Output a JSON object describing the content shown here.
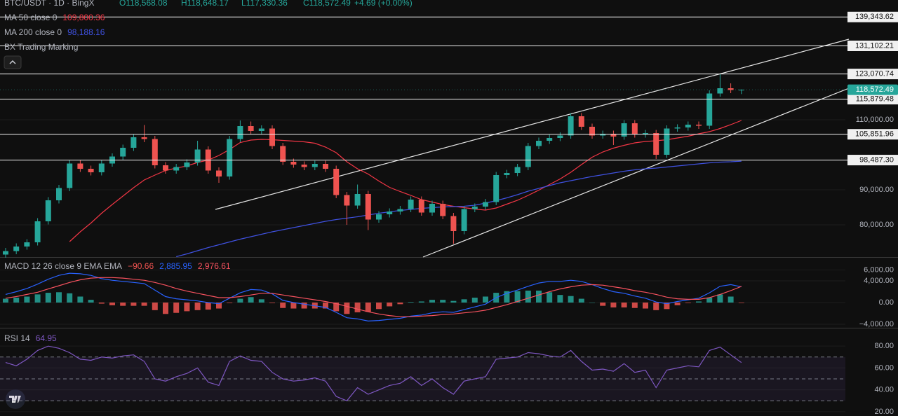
{
  "chart_data": [
    {
      "type": "candlestick",
      "title": "BTC/USDT · 1D · BingX",
      "ohlc_labels": [
        "O118,568.08",
        "H118,648.17",
        "L117,330.36",
        "C118,572.49"
      ],
      "change": "+4.69 (+0.00%)",
      "indicator_label": "BX Trading Marking",
      "up_color": "#26a69a",
      "down_color": "#ef5350",
      "ylim": [
        70800,
        144200
      ],
      "yticks": [
        {
          "value": 80000,
          "label": "80,000.00"
        },
        {
          "value": 90000,
          "label": "90,000.00"
        },
        {
          "value": 110000,
          "label": "110,000.00"
        }
      ],
      "levels": [
        {
          "value": 139343.62,
          "label": "139,343.62"
        },
        {
          "value": 131102.21,
          "label": "131,102.21"
        },
        {
          "value": 123070.74,
          "label": "123,070.74"
        },
        {
          "value": 115879.48,
          "label": "115,879.48"
        },
        {
          "value": 105851.96,
          "label": "105,851.96"
        },
        {
          "value": 98487.3,
          "label": "98,487.30"
        }
      ],
      "last_price": {
        "value": 118572.49,
        "label": "118,572.49",
        "color": "#26a69a"
      },
      "open": [
        71500,
        72500,
        73800,
        75000,
        81000,
        87000,
        90500,
        97500,
        96000,
        95000,
        97500,
        99500,
        102000,
        105000,
        104500,
        97000,
        95500,
        96500,
        97800,
        101500,
        95500,
        93800,
        104500,
        108200,
        106800,
        107500,
        102500,
        98000,
        97200,
        96500,
        97400,
        96000,
        88500,
        85500,
        88800,
        81500,
        83000,
        83800,
        84500,
        87200,
        83500,
        86000,
        82500,
        78200,
        84500,
        85200,
        86500,
        94200,
        94800,
        96500,
        102500,
        104000,
        104800,
        105500,
        111000,
        108000,
        105500,
        106000,
        105200,
        109000,
        105800,
        106200,
        100000,
        107500,
        107800,
        108600,
        108300,
        117500,
        119000,
        118568.08
      ],
      "high": [
        73400,
        74700,
        75900,
        81900,
        87900,
        91400,
        98400,
        98400,
        96900,
        98400,
        100400,
        102900,
        105900,
        108500,
        105400,
        97900,
        97400,
        98700,
        104000,
        102400,
        96400,
        105400,
        109800,
        109500,
        108400,
        108400,
        103400,
        98900,
        98100,
        98300,
        98300,
        96900,
        89400,
        91500,
        89700,
        83900,
        84700,
        85400,
        88100,
        88100,
        86900,
        86900,
        83400,
        85400,
        86100,
        87400,
        95100,
        95700,
        97400,
        103400,
        104900,
        105700,
        106400,
        111900,
        111900,
        108900,
        106900,
        106900,
        109900,
        109900,
        107100,
        107100,
        108400,
        108700,
        109500,
        109500,
        118400,
        123000,
        120400,
        118648.17
      ],
      "low": [
        70600,
        71600,
        72900,
        74100,
        80100,
        86100,
        89600,
        95100,
        94100,
        94100,
        96600,
        98600,
        101100,
        103600,
        96100,
        94600,
        94600,
        95600,
        96900,
        94600,
        92000,
        92900,
        103600,
        105900,
        105900,
        101600,
        97100,
        96300,
        95600,
        95600,
        95100,
        87600,
        80000,
        84600,
        78500,
        80600,
        82100,
        82900,
        83600,
        82600,
        82600,
        81600,
        74600,
        77300,
        83600,
        84300,
        85600,
        93300,
        93900,
        95600,
        101600,
        103100,
        103900,
        104600,
        107100,
        104600,
        104600,
        102800,
        104300,
        104900,
        104900,
        98800,
        99100,
        106600,
        106900,
        107400,
        107400,
        116600,
        117600,
        117330.36
      ],
      "close": [
        72500,
        73800,
        75000,
        81000,
        87000,
        90500,
        97500,
        96000,
        95000,
        97500,
        99500,
        102000,
        105000,
        104500,
        97000,
        95500,
        96500,
        97800,
        101500,
        95500,
        93800,
        104500,
        108200,
        106800,
        107500,
        102500,
        98000,
        97200,
        96500,
        97400,
        96000,
        88500,
        85500,
        88800,
        81500,
        83000,
        83800,
        84500,
        87200,
        83500,
        86000,
        82500,
        78200,
        84500,
        85200,
        86500,
        94200,
        94800,
        96500,
        102500,
        104000,
        104800,
        105500,
        111000,
        108000,
        105500,
        106000,
        105200,
        109000,
        105800,
        106200,
        100000,
        107500,
        107800,
        108600,
        108300,
        117500,
        119000,
        118500,
        118572.49
      ],
      "series": [
        {
          "name": "MA 50 close 0",
          "last_value_label": "109,800.36",
          "color": "#f23645",
          "values": [
            null,
            null,
            null,
            null,
            null,
            null,
            75200,
            78000,
            80500,
            83300,
            85800,
            88200,
            90600,
            92800,
            94200,
            95500,
            96200,
            96800,
            97800,
            98500,
            99800,
            101500,
            103500,
            104200,
            104400,
            104300,
            104100,
            103900,
            103700,
            103300,
            102200,
            100600,
            98000,
            96000,
            94500,
            92500,
            90700,
            89500,
            88400,
            87200,
            86500,
            85800,
            85300,
            84900,
            84500,
            84200,
            84800,
            85900,
            87000,
            88400,
            89900,
            91500,
            93100,
            95000,
            97200,
            99300,
            100800,
            101900,
            102700,
            103400,
            103800,
            104000,
            104300,
            104800,
            105300,
            106000,
            106600,
            107500,
            108600,
            109800.36
          ]
        },
        {
          "name": "MA 200 close 0",
          "last_value_label": "98,188.16",
          "color": "#3f51e0",
          "values": [
            null,
            null,
            null,
            null,
            null,
            null,
            null,
            null,
            null,
            null,
            null,
            null,
            null,
            null,
            null,
            null,
            70900,
            71700,
            72600,
            73500,
            74300,
            75100,
            75900,
            76600,
            77300,
            78000,
            78600,
            79200,
            79800,
            80400,
            81000,
            81500,
            81900,
            82300,
            82800,
            83300,
            83700,
            84100,
            84400,
            84700,
            84900,
            85100,
            85200,
            85300,
            85600,
            86200,
            86900,
            87700,
            88600,
            89600,
            90400,
            91200,
            92000,
            92600,
            93200,
            93800,
            94300,
            94800,
            95300,
            95700,
            96000,
            96200,
            96500,
            96800,
            97100,
            97400,
            97700,
            97900,
            98000,
            98188.16
          ]
        }
      ]
    },
    {
      "type": "macd",
      "title": "MACD 12 26 close 9 EMA EMA",
      "ylim": [
        -4645,
        8258
      ],
      "yticks": [
        {
          "value": 6000,
          "label": "6,000.00"
        },
        {
          "value": 4000,
          "label": "4,000.00"
        },
        {
          "value": 0,
          "label": "0.00"
        },
        {
          "value": -4000,
          "label": "−4,000.00"
        }
      ],
      "histogram": {
        "last_value_label": "−90.66",
        "up_color": "#26a69a",
        "down_color": "#ef5350",
        "values": [
          700,
          900,
          1100,
          1500,
          1800,
          1900,
          1700,
          1100,
          500,
          -200,
          -500,
          -600,
          -600,
          -600,
          -1400,
          -2100,
          -1900,
          -1600,
          -1400,
          -1300,
          -1100,
          -100,
          700,
          1000,
          600,
          -100,
          -1000,
          -1100,
          -1100,
          -1100,
          -1100,
          -1600,
          -2100,
          -1800,
          -1700,
          -1200,
          -700,
          -300,
          100,
          200,
          500,
          500,
          300,
          600,
          900,
          1100,
          1800,
          2100,
          2100,
          2200,
          2200,
          1900,
          1400,
          1200,
          700,
          0,
          -600,
          -900,
          -900,
          -1000,
          -1100,
          -1400,
          -1200,
          -500,
          -100,
          200,
          900,
          1500,
          1100,
          -90.66
        ]
      },
      "series": [
        {
          "last_value_label": "2,885.95",
          "color": "#2962ff",
          "values": [
            1500,
            2000,
            2600,
            3400,
            4300,
            5000,
            5400,
            5300,
            5000,
            4400,
            4100,
            3900,
            3700,
            3500,
            2300,
            1100,
            700,
            500,
            300,
            0,
            -200,
            800,
            1800,
            2400,
            2300,
            1600,
            400,
            0,
            -300,
            -600,
            -900,
            -1800,
            -2800,
            -3000,
            -3400,
            -3300,
            -3100,
            -2900,
            -2500,
            -2300,
            -1900,
            -1700,
            -1800,
            -1300,
            -800,
            -300,
            900,
            1700,
            2300,
            3000,
            3600,
            3900,
            3900,
            4100,
            3900,
            3300,
            2600,
            2000,
            1700,
            1200,
            800,
            100,
            -200,
            200,
            500,
            800,
            1800,
            3000,
            3300,
            2885.95
          ]
        },
        {
          "last_value_label": "2,976.61",
          "color": "#f7525f",
          "values": [
            800,
            1100,
            1500,
            1900,
            2500,
            3100,
            3700,
            4200,
            4500,
            4600,
            4600,
            4500,
            4300,
            4100,
            3700,
            3200,
            2600,
            2100,
            1700,
            1300,
            900,
            900,
            1100,
            1400,
            1700,
            1700,
            1400,
            1100,
            800,
            500,
            200,
            -200,
            -700,
            -1200,
            -1700,
            -2100,
            -2400,
            -2600,
            -2600,
            -2500,
            -2400,
            -2200,
            -2100,
            -1900,
            -1700,
            -1400,
            -900,
            -400,
            200,
            800,
            1400,
            2000,
            2500,
            2900,
            3200,
            3300,
            3200,
            2900,
            2600,
            2200,
            1900,
            1500,
            1000,
            700,
            600,
            600,
            900,
            1500,
            2200,
            2976.61
          ]
        }
      ]
    },
    {
      "type": "line",
      "title": "RSI 14",
      "ylim": [
        16.1,
        96.1
      ],
      "yticks": [
        {
          "value": 80,
          "label": "80.00"
        },
        {
          "value": 60,
          "label": "60.00"
        },
        {
          "value": 40,
          "label": "40.00"
        },
        {
          "value": 20,
          "label": "20.00"
        }
      ],
      "bands": [
        70,
        50,
        30
      ],
      "band_color": "#7e57c2",
      "series": [
        {
          "last_value_label": "64.95",
          "color": "#7e57c2",
          "values": [
            65,
            62,
            68,
            76,
            80,
            78,
            74,
            68,
            67,
            70,
            69,
            71,
            72,
            66,
            50,
            48,
            52,
            55,
            60,
            47,
            44,
            66,
            71,
            67,
            66,
            56,
            50,
            48,
            49,
            51,
            48,
            34,
            30,
            42,
            36,
            40,
            44,
            46,
            52,
            44,
            50,
            42,
            36,
            48,
            50,
            52,
            68,
            69,
            70,
            74,
            73,
            71,
            70,
            76,
            66,
            58,
            59,
            57,
            64,
            56,
            58,
            42,
            58,
            60,
            62,
            61,
            76,
            79,
            72,
            64.95
          ]
        }
      ]
    }
  ]
}
